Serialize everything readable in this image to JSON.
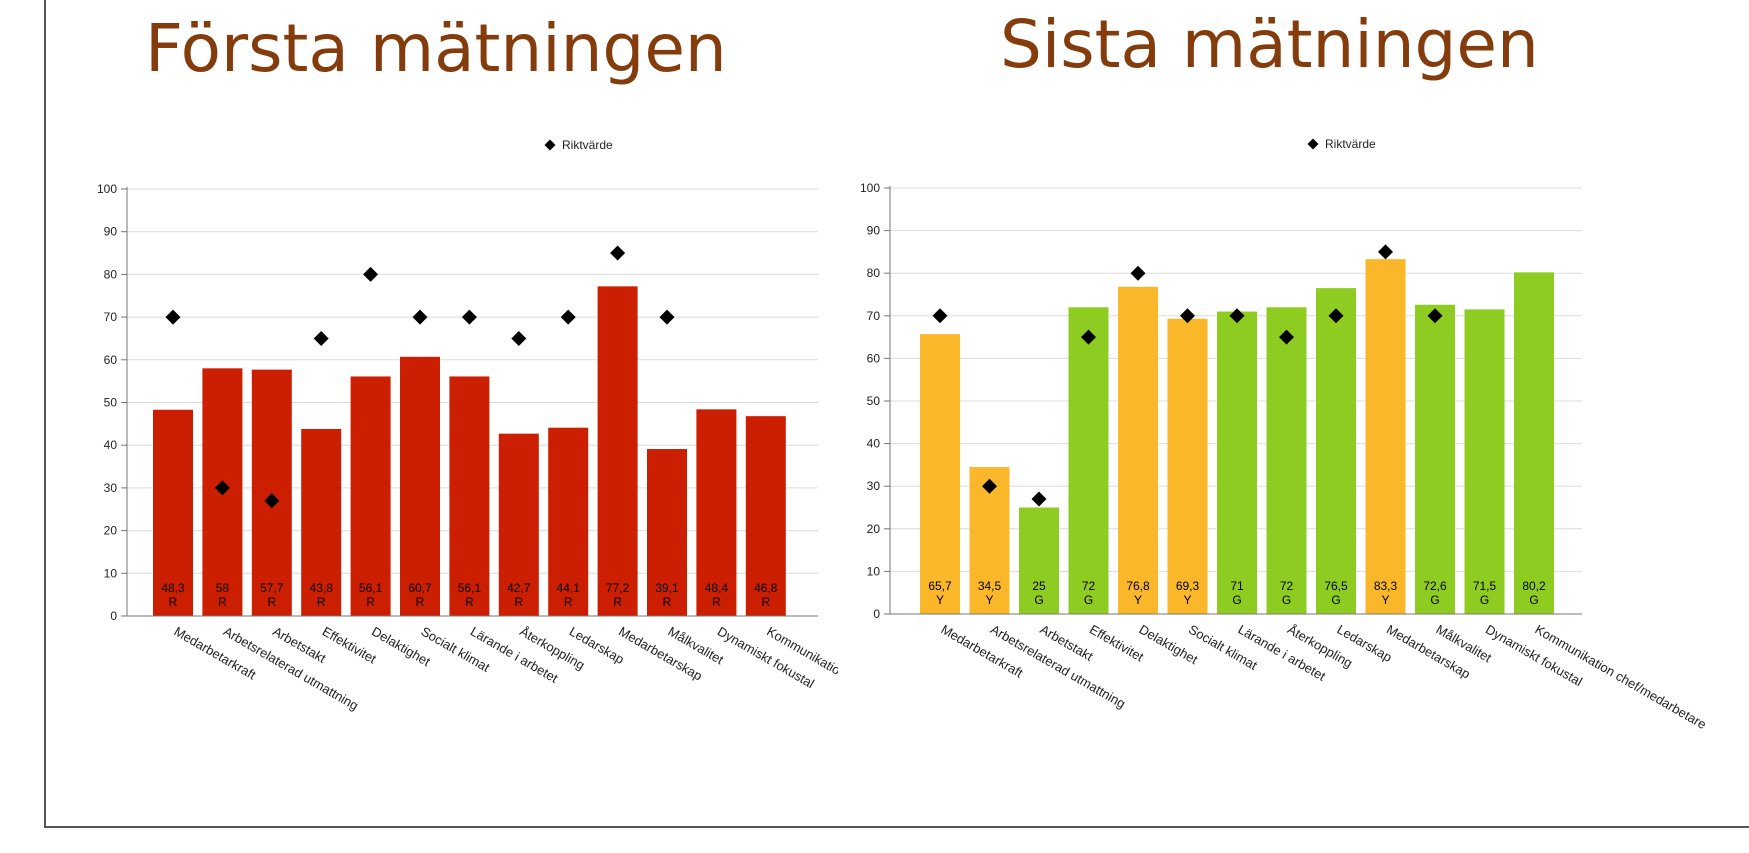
{
  "slide": {
    "title_left": "Första mätningen",
    "title_right": "Sista mätningen"
  },
  "colors": {
    "R": "#cc1e00",
    "Y": "#fbb72a",
    "G": "#8fcc21",
    "marker": "#000000",
    "title": "#843c0c"
  },
  "chart_data": [
    {
      "type": "bar",
      "title": "",
      "legend": {
        "label": "Riktvärde",
        "marker": "diamond",
        "position": "top"
      },
      "categories": [
        "Medarbetarkraft",
        "Arbetsrelaterad utmattning",
        "Arbetstakt",
        "Effektivitet",
        "Delaktighet",
        "Socialt klimat",
        "Lärande i arbetet",
        "Återkoppling",
        "Ledarskap",
        "Medarbetarskap",
        "Målkvalitet",
        "Dynamiskt fokustal",
        "Kommunikatio"
      ],
      "values": [
        48.3,
        58,
        57.7,
        43.8,
        56.1,
        60.7,
        56.1,
        42.7,
        44.1,
        77.2,
        39.1,
        48.4,
        46.8
      ],
      "value_labels": [
        "48,3",
        "58",
        "57,7",
        "43,8",
        "56,1",
        "60,7",
        "56,1",
        "42,7",
        "44,1",
        "77,2",
        "39,1",
        "48,4",
        "46,8"
      ],
      "status": [
        "R",
        "R",
        "R",
        "R",
        "R",
        "R",
        "R",
        "R",
        "R",
        "R",
        "R",
        "R",
        "R"
      ],
      "target": [
        70,
        30,
        27,
        65,
        80,
        70,
        70,
        65,
        70,
        85,
        70,
        null,
        null
      ],
      "ylim": [
        0,
        100
      ],
      "yticks": [
        0,
        10,
        20,
        30,
        40,
        50,
        60,
        70,
        80,
        90,
        100
      ],
      "grid": true
    },
    {
      "type": "bar",
      "title": "",
      "legend": {
        "label": "Riktvärde",
        "marker": "diamond",
        "position": "top"
      },
      "categories": [
        "Medarbetarkraft",
        "Arbetsrelaterad utmattning",
        "Arbetstakt",
        "Effektivitet",
        "Delaktighet",
        "Socialt klimat",
        "Lärande i arbetet",
        "Återkoppling",
        "Ledarskap",
        "Medarbetarskap",
        "Målkvalitet",
        "Dynamiskt fokustal",
        "Kommunikation chef/medarbetare"
      ],
      "values": [
        65.7,
        34.5,
        25,
        72,
        76.8,
        69.3,
        71,
        72,
        76.5,
        83.3,
        72.6,
        71.5,
        80.2
      ],
      "value_labels": [
        "65,7",
        "34,5",
        "25",
        "72",
        "76,8",
        "69,3",
        "71",
        "72",
        "76,5",
        "83,3",
        "72,6",
        "71,5",
        "80,2"
      ],
      "status": [
        "Y",
        "Y",
        "G",
        "G",
        "Y",
        "Y",
        "G",
        "G",
        "G",
        "Y",
        "G",
        "G",
        "G"
      ],
      "target": [
        70,
        30,
        27,
        65,
        80,
        70,
        70,
        65,
        70,
        85,
        70,
        null,
        null
      ],
      "ylim": [
        0,
        100
      ],
      "yticks": [
        0,
        10,
        20,
        30,
        40,
        50,
        60,
        70,
        80,
        90,
        100
      ],
      "grid": true
    }
  ]
}
